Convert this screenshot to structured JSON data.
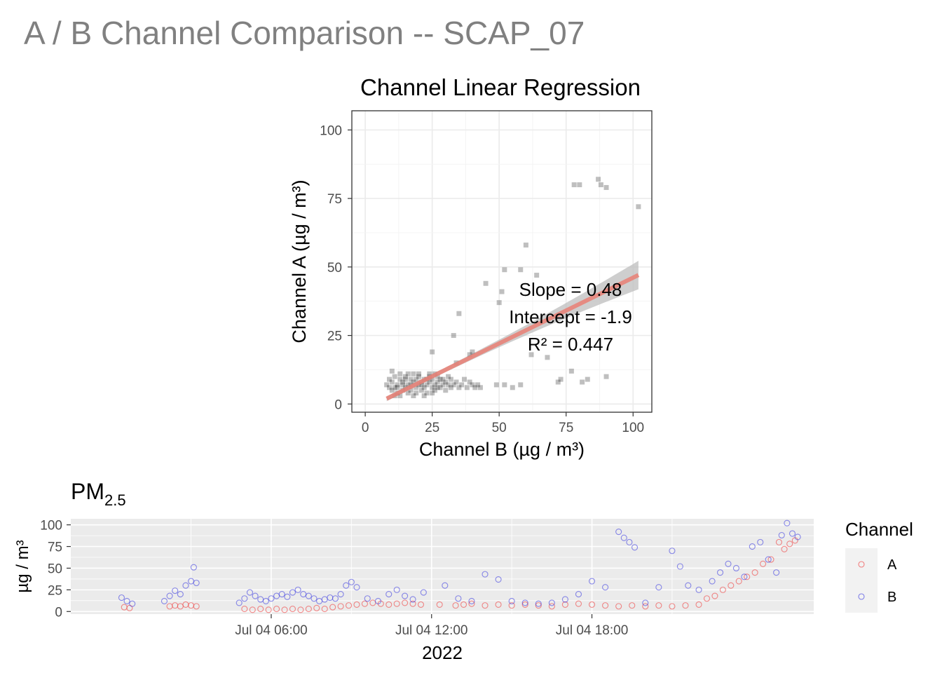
{
  "page_title": "A / B Channel Comparison -- SCAP_07",
  "chart_data": [
    {
      "type": "scatter",
      "title": "Channel Linear Regression",
      "xlabel": "Channel B (µg / m³)",
      "ylabel": "Channel A (µg / m³)",
      "xlim": [
        -5,
        107
      ],
      "ylim": [
        -3,
        107
      ],
      "xticks": [
        0,
        25,
        50,
        75,
        100
      ],
      "yticks": [
        0,
        25,
        50,
        75,
        100
      ],
      "grid": true,
      "point_color": "#000000",
      "fit_color": "#E8847A",
      "band_color": "#BEBEBE",
      "annotations": [
        "Slope = 0.48",
        "Intercept = -1.9",
        "R² = 0.447"
      ],
      "fit": {
        "slope": 0.48,
        "intercept": -1.9,
        "x_range": [
          8,
          102
        ]
      },
      "points": [
        [
          8,
          7
        ],
        [
          9,
          6
        ],
        [
          9,
          9
        ],
        [
          10,
          5
        ],
        [
          10,
          8
        ],
        [
          11,
          6
        ],
        [
          11,
          10
        ],
        [
          12,
          7
        ],
        [
          12,
          4
        ],
        [
          13,
          9
        ],
        [
          13,
          11
        ],
        [
          14,
          5
        ],
        [
          14,
          8
        ],
        [
          15,
          6
        ],
        [
          15,
          10
        ],
        [
          16,
          7
        ],
        [
          16,
          4
        ],
        [
          17,
          9
        ],
        [
          17,
          5
        ],
        [
          18,
          8
        ],
        [
          18,
          11
        ],
        [
          19,
          6
        ],
        [
          19,
          4
        ],
        [
          20,
          7
        ],
        [
          20,
          10
        ],
        [
          21,
          5
        ],
        [
          21,
          8
        ],
        [
          22,
          6
        ],
        [
          22,
          9
        ],
        [
          23,
          7
        ],
        [
          23,
          4
        ],
        [
          24,
          8
        ],
        [
          24,
          11
        ],
        [
          25,
          6
        ],
        [
          25,
          9
        ],
        [
          26,
          7
        ],
        [
          26,
          5
        ],
        [
          27,
          8
        ],
        [
          27,
          10
        ],
        [
          28,
          6
        ],
        [
          28,
          9
        ],
        [
          29,
          7
        ],
        [
          30,
          8
        ],
        [
          30,
          5
        ],
        [
          31,
          10
        ],
        [
          32,
          6
        ],
        [
          32,
          9
        ],
        [
          33,
          7
        ],
        [
          34,
          8
        ],
        [
          35,
          6
        ],
        [
          36,
          7
        ],
        [
          37,
          9
        ],
        [
          38,
          6
        ],
        [
          39,
          8
        ],
        [
          40,
          7
        ],
        [
          41,
          6
        ],
        [
          42,
          7
        ],
        [
          43,
          6
        ],
        [
          10,
          12
        ],
        [
          11,
          3
        ],
        [
          13,
          3
        ],
        [
          16,
          11
        ],
        [
          18,
          3
        ],
        [
          20,
          11
        ],
        [
          22,
          3
        ],
        [
          24,
          10
        ],
        [
          26,
          11
        ],
        [
          12,
          6
        ],
        [
          14,
          7
        ],
        [
          15,
          9
        ],
        [
          17,
          7
        ],
        [
          19,
          9
        ],
        [
          21,
          7
        ],
        [
          23,
          9
        ],
        [
          25,
          4
        ],
        [
          27,
          6
        ],
        [
          29,
          9
        ],
        [
          31,
          7
        ],
        [
          25,
          19
        ],
        [
          33,
          25
        ],
        [
          34,
          15
        ],
        [
          35,
          33
        ],
        [
          39,
          18
        ],
        [
          40,
          19
        ],
        [
          45,
          44
        ],
        [
          49,
          7
        ],
        [
          50,
          37
        ],
        [
          51,
          41
        ],
        [
          52,
          49
        ],
        [
          52,
          7
        ],
        [
          55,
          6
        ],
        [
          58,
          7
        ],
        [
          58,
          49
        ],
        [
          60,
          58
        ],
        [
          62,
          18
        ],
        [
          64,
          47
        ],
        [
          68,
          17
        ],
        [
          72,
          8
        ],
        [
          73,
          9
        ],
        [
          77,
          12
        ],
        [
          78,
          80
        ],
        [
          80,
          80
        ],
        [
          81,
          8
        ],
        [
          83,
          9
        ],
        [
          87,
          82
        ],
        [
          88,
          80
        ],
        [
          90,
          79
        ],
        [
          90,
          10
        ],
        [
          102,
          72
        ]
      ]
    },
    {
      "type": "scatter",
      "title": "PM",
      "title_subscript": "2.5",
      "xlabel": "2022",
      "ylabel": "µg / m³",
      "ylim": [
        -3,
        107
      ],
      "yticks": [
        0,
        25,
        50,
        75,
        100
      ],
      "x_unit": "hours since Jul 04 00:00",
      "xlim": [
        -1.5,
        26.3
      ],
      "xticks": [
        6,
        12,
        18
      ],
      "xtick_labels": [
        "Jul 04 06:00",
        "Jul 04 12:00",
        "Jul 04 18:00"
      ],
      "grid": true,
      "legend_title": "Channel",
      "legend_position": "right",
      "series": [
        {
          "name": "A",
          "color": "#F8766D",
          "points": [
            [
              0.5,
              5
            ],
            [
              0.7,
              4
            ],
            [
              2.2,
              6
            ],
            [
              2.4,
              7
            ],
            [
              2.6,
              6
            ],
            [
              2.8,
              8
            ],
            [
              3.0,
              7
            ],
            [
              3.2,
              6
            ],
            [
              5.0,
              3
            ],
            [
              5.3,
              2
            ],
            [
              5.6,
              3
            ],
            [
              5.9,
              2
            ],
            [
              6.2,
              3
            ],
            [
              6.5,
              2
            ],
            [
              6.8,
              3
            ],
            [
              7.1,
              2
            ],
            [
              7.4,
              3
            ],
            [
              7.7,
              4
            ],
            [
              8.0,
              3
            ],
            [
              8.3,
              5
            ],
            [
              8.6,
              6
            ],
            [
              8.9,
              7
            ],
            [
              9.2,
              8
            ],
            [
              9.5,
              9
            ],
            [
              9.8,
              10
            ],
            [
              10.1,
              9
            ],
            [
              10.4,
              8
            ],
            [
              10.7,
              9
            ],
            [
              11.0,
              10
            ],
            [
              11.3,
              9
            ],
            [
              11.6,
              8
            ],
            [
              12.3,
              8
            ],
            [
              12.9,
              7
            ],
            [
              13.2,
              8
            ],
            [
              13.5,
              9
            ],
            [
              14.0,
              7
            ],
            [
              14.5,
              8
            ],
            [
              15.0,
              7
            ],
            [
              15.5,
              8
            ],
            [
              16.0,
              7
            ],
            [
              16.5,
              6
            ],
            [
              17.0,
              8
            ],
            [
              17.5,
              9
            ],
            [
              18.0,
              8
            ],
            [
              18.5,
              7
            ],
            [
              19.0,
              6
            ],
            [
              19.5,
              7
            ],
            [
              20.0,
              6
            ],
            [
              20.5,
              7
            ],
            [
              21.0,
              6
            ],
            [
              21.5,
              7
            ],
            [
              22.0,
              8
            ],
            [
              22.3,
              15
            ],
            [
              22.6,
              18
            ],
            [
              22.9,
              25
            ],
            [
              23.2,
              30
            ],
            [
              23.5,
              35
            ],
            [
              23.8,
              40
            ],
            [
              24.1,
              45
            ],
            [
              24.4,
              55
            ],
            [
              24.7,
              60
            ],
            [
              25.0,
              80
            ],
            [
              25.2,
              72
            ],
            [
              25.4,
              78
            ],
            [
              25.6,
              82
            ]
          ]
        },
        {
          "name": "B",
          "color": "#619CFF",
          "points": [
            [
              0.4,
              16
            ],
            [
              0.6,
              12
            ],
            [
              0.8,
              9
            ],
            [
              2.0,
              12
            ],
            [
              2.2,
              18
            ],
            [
              2.4,
              24
            ],
            [
              2.6,
              20
            ],
            [
              2.8,
              30
            ],
            [
              3.0,
              35
            ],
            [
              3.1,
              51
            ],
            [
              3.2,
              33
            ],
            [
              4.8,
              10
            ],
            [
              5.0,
              15
            ],
            [
              5.2,
              22
            ],
            [
              5.4,
              18
            ],
            [
              5.6,
              14
            ],
            [
              5.8,
              12
            ],
            [
              6.0,
              15
            ],
            [
              6.2,
              18
            ],
            [
              6.4,
              20
            ],
            [
              6.6,
              17
            ],
            [
              6.8,
              22
            ],
            [
              7.0,
              25
            ],
            [
              7.2,
              20
            ],
            [
              7.4,
              18
            ],
            [
              7.6,
              15
            ],
            [
              7.8,
              12
            ],
            [
              8.0,
              14
            ],
            [
              8.2,
              16
            ],
            [
              8.4,
              15
            ],
            [
              8.6,
              20
            ],
            [
              8.8,
              30
            ],
            [
              9.0,
              34
            ],
            [
              9.2,
              28
            ],
            [
              9.6,
              15
            ],
            [
              10.0,
              12
            ],
            [
              10.4,
              20
            ],
            [
              10.7,
              25
            ],
            [
              11.0,
              18
            ],
            [
              11.3,
              14
            ],
            [
              11.7,
              22
            ],
            [
              12.5,
              30
            ],
            [
              13.0,
              15
            ],
            [
              13.5,
              12
            ],
            [
              14.0,
              43
            ],
            [
              14.5,
              37
            ],
            [
              15.0,
              12
            ],
            [
              15.5,
              10
            ],
            [
              16.0,
              9
            ],
            [
              16.5,
              10
            ],
            [
              17.0,
              14
            ],
            [
              17.5,
              20
            ],
            [
              18.0,
              35
            ],
            [
              18.5,
              28
            ],
            [
              19.0,
              92
            ],
            [
              19.2,
              85
            ],
            [
              19.4,
              80
            ],
            [
              19.6,
              74
            ],
            [
              20.0,
              10
            ],
            [
              20.5,
              28
            ],
            [
              21.0,
              70
            ],
            [
              21.3,
              52
            ],
            [
              21.6,
              30
            ],
            [
              22.0,
              25
            ],
            [
              22.5,
              35
            ],
            [
              22.8,
              45
            ],
            [
              23.1,
              55
            ],
            [
              23.4,
              50
            ],
            [
              23.7,
              40
            ],
            [
              24.0,
              75
            ],
            [
              24.3,
              80
            ],
            [
              24.6,
              60
            ],
            [
              24.9,
              45
            ],
            [
              25.1,
              88
            ],
            [
              25.3,
              102
            ],
            [
              25.5,
              90
            ],
            [
              25.7,
              86
            ]
          ]
        }
      ]
    }
  ]
}
